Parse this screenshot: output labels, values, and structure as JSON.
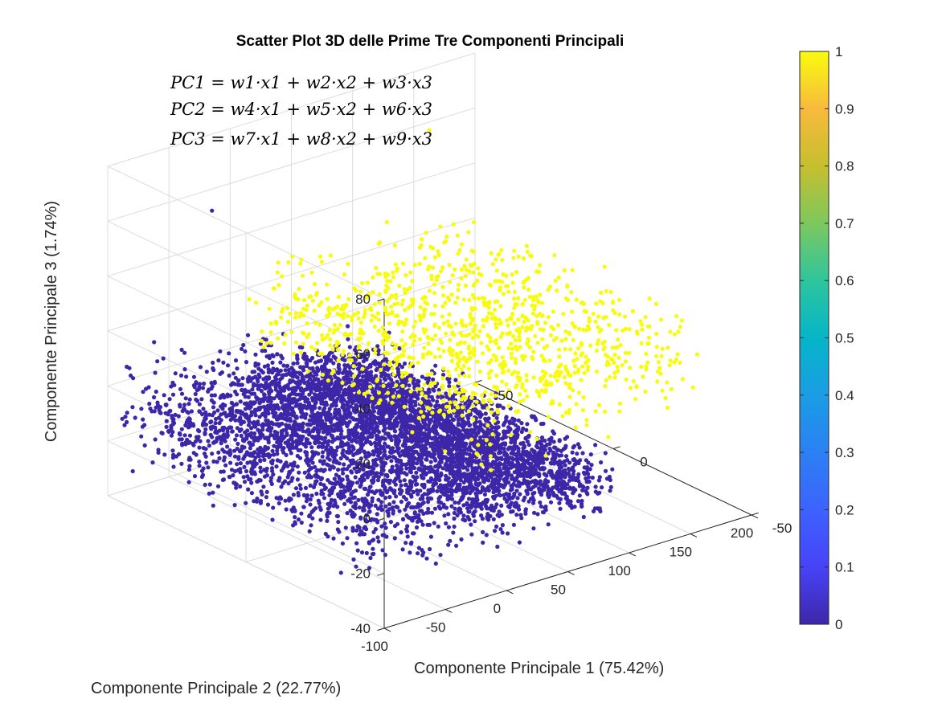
{
  "chart_data": {
    "type": "scatter",
    "title": "Scatter Plot 3D delle Prime Tre Componenti Principali",
    "xlabel": "Componente Principale 1 (75.42%)",
    "ylabel": "Componente Principale 2 (22.77%)",
    "zlabel": "Componente Principale 3 (1.74%)",
    "xlim": [
      -100,
      200
    ],
    "ylim": [
      -50,
      50
    ],
    "zlim": [
      -40,
      80
    ],
    "x_ticks": [
      "-100",
      "-50",
      "0",
      "50",
      "100",
      "150",
      "200"
    ],
    "y_ticks": [
      "-50",
      "0",
      "50"
    ],
    "z_ticks": [
      "-40",
      "-20",
      "0",
      "20",
      "40",
      "60",
      "80"
    ],
    "grid": true,
    "colorbar": {
      "ticks": [
        "0",
        "0.1",
        "0.2",
        "0.3",
        "0.4",
        "0.5",
        "0.6",
        "0.7",
        "0.8",
        "0.9",
        "1"
      ],
      "range": [
        0,
        1
      ],
      "colormap": "parula"
    },
    "annotations": [
      "PC1 = w1·x1 + w2·x2 + w3·x3",
      "PC2 = w4·x1 + w5·x2 + w6·x3",
      "PC3 = w7·x1 + w8·x2 + w9·x3"
    ],
    "series": [
      {
        "class_value": 0,
        "color": "#3e26a8",
        "clusters": [
          {
            "x_range": [
              -100,
              0
            ],
            "y_range": [
              -45,
              45
            ],
            "z_center": -8,
            "z_spread": 12
          },
          {
            "x_range": [
              0,
              50
            ],
            "y_range": [
              -45,
              45
            ],
            "z_center": -12,
            "z_spread": 10
          },
          {
            "x_range": [
              50,
              100
            ],
            "y_range": [
              -45,
              45
            ],
            "z_center": -15,
            "z_spread": 8
          }
        ]
      },
      {
        "class_value": 1,
        "color": "#f9fb0e",
        "clusters": [
          {
            "x_range": [
              0,
              180
            ],
            "y_range": [
              -40,
              45
            ],
            "z_center": 15,
            "z_spread": 12
          }
        ]
      }
    ],
    "outliers": [
      {
        "x": -60,
        "y": 30,
        "z": 68,
        "class_value": 0
      },
      {
        "x": 140,
        "y": 40,
        "z": 65,
        "class_value": 1
      }
    ]
  }
}
